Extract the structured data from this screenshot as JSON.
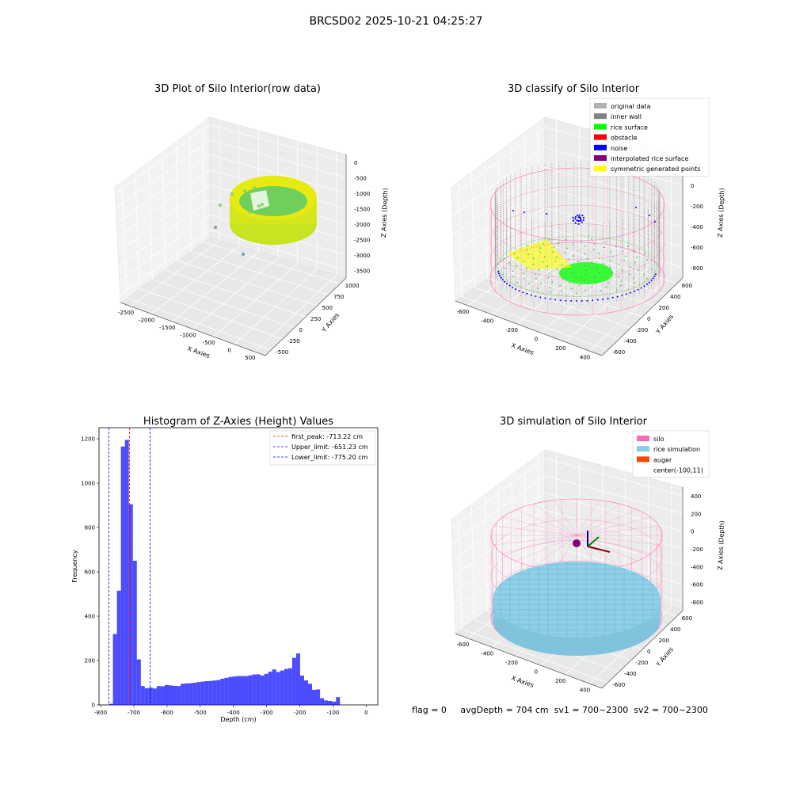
{
  "suptitle": "BRCSD02 2025-10-21 04:25:27",
  "status_line": "flag = 0     avgDepth = 704 cm  sv1 = 700~2300  sv2 = 700~2300",
  "colors": {
    "silo": "#ff69b4",
    "rice": "#87ceeb",
    "auger": "#ff4500",
    "hist": "#0000ff",
    "wall": "#808080",
    "surface": "#00ff00",
    "noise": "#0000ff",
    "yellow": "#ffff00"
  },
  "chart_data": [
    {
      "type": "scatter3d",
      "title": "3D Plot of Silo Interior(row data)",
      "xlabel": "X Axies",
      "ylabel": "Y Axies",
      "zlabel": "Z Axies (Depth)",
      "xticks": [
        "-2500",
        "-2000",
        "-1500",
        "-1000",
        "-500",
        "0",
        "500"
      ],
      "yticks": [
        "-500",
        "-250",
        "0",
        "250",
        "500",
        "750",
        "1000"
      ],
      "zticks": [
        "0",
        "-500",
        "-1000",
        "-1500",
        "-2000",
        "-2500",
        "-3000",
        "-3500"
      ]
    },
    {
      "type": "scatter3d",
      "title": "3D classify of Silo Interior",
      "xlabel": "X Axies",
      "ylabel": "Y Axies",
      "zlabel": "Z Axies (Depth)",
      "xticks": [
        "-600",
        "-400",
        "-200",
        "0",
        "200",
        "400"
      ],
      "yticks": [
        "-600",
        "-400",
        "-200",
        "0",
        "200",
        "400",
        "600"
      ],
      "zticks": [
        "200",
        "0",
        "-200",
        "-400",
        "-600",
        "-800"
      ],
      "legend": [
        {
          "name": "original data",
          "color": "#b0b0b0"
        },
        {
          "name": "inner wall",
          "color": "#808080"
        },
        {
          "name": "rice surface",
          "color": "#00ff00"
        },
        {
          "name": "obstacle",
          "color": "#ff0000"
        },
        {
          "name": "noise",
          "color": "#0000ff"
        },
        {
          "name": "interpolated rice surface",
          "color": "#800080"
        },
        {
          "name": "symmetric generated points",
          "color": "#ffff00"
        }
      ]
    },
    {
      "type": "bar",
      "title": "Histogram of Z-Axies (Height) Values",
      "xlabel": "Depth (cm)",
      "ylabel": "Frequency",
      "xlim": [
        -805,
        35
      ],
      "ylim": [
        0,
        1250
      ],
      "xticks": [
        -800,
        -700,
        -600,
        -500,
        -400,
        -300,
        -200,
        -100,
        0
      ],
      "yticks": [
        0,
        200,
        400,
        600,
        800,
        1000,
        1200
      ],
      "bin_width": 12,
      "bin_starts": [
        -775,
        -763,
        -751,
        -739,
        -727,
        -715,
        -703,
        -691,
        -679,
        -667,
        -655,
        -643,
        -631,
        -619,
        -607,
        -595,
        -583,
        -571,
        -559,
        -547,
        -535,
        -523,
        -511,
        -499,
        -487,
        -475,
        -463,
        -451,
        -439,
        -427,
        -415,
        -403,
        -391,
        -379,
        -367,
        -355,
        -343,
        -331,
        -319,
        -307,
        -295,
        -283,
        -271,
        -259,
        -247,
        -235,
        -223,
        -211,
        -199,
        -187,
        -175,
        -163,
        -151,
        -139,
        -127,
        -115,
        -103,
        -91,
        -79,
        -67,
        -55,
        -43,
        -31,
        -19,
        -7
      ],
      "counts": [
        5,
        320,
        515,
        1165,
        1195,
        905,
        650,
        205,
        85,
        75,
        78,
        74,
        85,
        84,
        90,
        88,
        86,
        85,
        95,
        97,
        98,
        100,
        103,
        105,
        107,
        108,
        110,
        112,
        118,
        122,
        126,
        128,
        130,
        130,
        130,
        133,
        137,
        138,
        132,
        140,
        150,
        160,
        148,
        155,
        162,
        165,
        212,
        232,
        132,
        110,
        95,
        68,
        70,
        30,
        20,
        18,
        15,
        35,
        0,
        0,
        0,
        0,
        0,
        0,
        0
      ],
      "vlines": [
        {
          "name": "first_peak: -713.22 cm",
          "x": -713.22,
          "color": "#ff0000"
        },
        {
          "name": "Upper_limit: -651.23 cm",
          "x": -651.23,
          "color": "#0000ff"
        },
        {
          "name": "Lower_limit: -775.20 cm",
          "x": -775.2,
          "color": "#0000ff"
        }
      ]
    },
    {
      "type": "surface3d",
      "title": "3D simulation of Silo Interior",
      "xlabel": "X Axies",
      "ylabel": "Y Axies",
      "zlabel": "Z Axies (Depth)",
      "xticks": [
        "-600",
        "-400",
        "-200",
        "0",
        "200",
        "400"
      ],
      "yticks": [
        "-600",
        "-400",
        "-200",
        "0",
        "200",
        "400",
        "600"
      ],
      "zticks": [
        "400",
        "200",
        "0",
        "-200",
        "-400",
        "-600",
        "-800"
      ],
      "legend": [
        {
          "name": "silo",
          "color": "#ff69b4"
        },
        {
          "name": "rice simulation",
          "color": "#87ceeb"
        },
        {
          "name": "auger",
          "color": "#ff4500"
        },
        {
          "name": "center(-100,11)",
          "color": ""
        }
      ]
    }
  ]
}
